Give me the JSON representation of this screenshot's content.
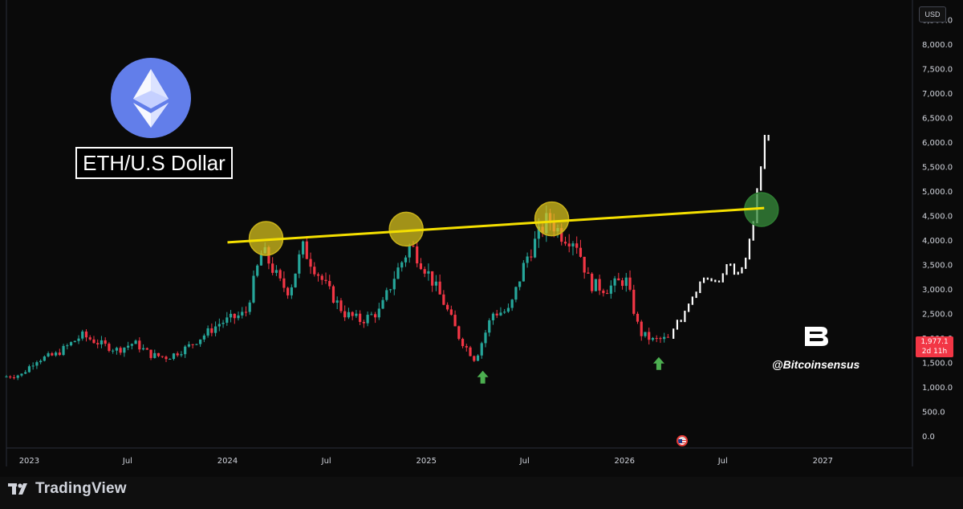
{
  "currency_badge": "USD",
  "title": "ETH/U.S Dollar",
  "brand_handle": "@Bitcoinsensus",
  "current_price": {
    "value": "1,977.1",
    "countdown": "2d 11h"
  },
  "footer": {
    "logo_text": "TradingView"
  },
  "colors": {
    "up": "#26a69a",
    "down": "#f23645",
    "projection": "#ffffff",
    "trendline": "#f5e000",
    "eth": "#627eea"
  },
  "chart_data": {
    "type": "candlestick",
    "title": "ETH/U.S Dollar",
    "y_tick_labels": [
      "0.0",
      "500.0",
      "1,000.0",
      "1,500.0",
      "2,000.0",
      "2,500.0",
      "3,000.0",
      "3,500.0",
      "4,000.0",
      "4,500.0",
      "5,000.0",
      "5,500.0",
      "6,000.0",
      "6,500.0",
      "7,000.0",
      "7,500.0",
      "8,000.0",
      "8,500.0"
    ],
    "y_ticks": [
      0,
      500,
      1000,
      1500,
      2000,
      2500,
      3000,
      3500,
      4000,
      4500,
      5000,
      5500,
      6000,
      6500,
      7000,
      7500,
      8000,
      8500
    ],
    "ylim": [
      -250,
      8900
    ],
    "x_tick_labels": [
      "2023",
      "Jul",
      "2024",
      "Jul",
      "2025",
      "Jul",
      "2026",
      "Jul",
      "2027"
    ],
    "x_ticks": [
      "2023-01-01",
      "2023-07-01",
      "2024-01-01",
      "2024-07-01",
      "2025-01-01",
      "2025-07-01",
      "2026-01-01",
      "2026-07-01",
      "2027-01-01"
    ],
    "xlim": [
      "2022-11-20",
      "2027-06-15"
    ],
    "price_path": [
      [
        "2022-11-20",
        1200
      ],
      [
        "2022-12-25",
        1250
      ],
      [
        "2023-01-20",
        1550
      ],
      [
        "2023-02-25",
        1650
      ],
      [
        "2023-04-15",
        2050
      ],
      [
        "2023-05-25",
        1850
      ],
      [
        "2023-06-20",
        1750
      ],
      [
        "2023-07-20",
        1900
      ],
      [
        "2023-08-20",
        1650
      ],
      [
        "2023-09-20",
        1600
      ],
      [
        "2023-10-25",
        1800
      ],
      [
        "2023-11-25",
        2050
      ],
      [
        "2023-12-25",
        2300
      ],
      [
        "2024-02-10",
        2500
      ],
      [
        "2024-03-12",
        3800
      ],
      [
        "2024-04-15",
        3100
      ],
      [
        "2024-05-01",
        2950
      ],
      [
        "2024-05-25",
        3850
      ],
      [
        "2024-07-10",
        3000
      ],
      [
        "2024-08-10",
        2500
      ],
      [
        "2024-09-10",
        2350
      ],
      [
        "2024-10-15",
        2550
      ],
      [
        "2024-11-10",
        3250
      ],
      [
        "2024-12-10",
        3900
      ],
      [
        "2025-01-10",
        3350
      ],
      [
        "2025-02-10",
        2700
      ],
      [
        "2025-03-10",
        2000
      ],
      [
        "2025-04-08",
        1550
      ],
      [
        "2025-05-10",
        2500
      ],
      [
        "2025-06-10",
        2550
      ],
      [
        "2025-07-10",
        3600
      ],
      [
        "2025-08-20",
        4450
      ],
      [
        "2025-09-15",
        4100
      ],
      [
        "2025-10-10",
        4000
      ],
      [
        "2025-11-05",
        3100
      ],
      [
        "2025-12-05",
        3000
      ],
      [
        "2026-01-10",
        3200
      ],
      [
        "2026-02-05",
        2100
      ],
      [
        "2026-03-01",
        1950
      ],
      [
        "2026-03-25",
        1977
      ]
    ],
    "projection_path": [
      [
        "2026-04-01",
        2000
      ],
      [
        "2026-05-01",
        2600
      ],
      [
        "2026-06-01",
        3300
      ],
      [
        "2026-07-01",
        3250
      ],
      [
        "2026-07-20",
        3600
      ],
      [
        "2026-08-05",
        3300
      ],
      [
        "2026-08-20",
        3800
      ],
      [
        "2026-09-05",
        4700
      ],
      [
        "2026-09-25",
        6300
      ]
    ],
    "trendline": {
      "start": [
        "2024-01-01",
        3950
      ],
      "end": [
        "2026-09-15",
        4650
      ]
    },
    "highlights": [
      {
        "date": "2024-03-12",
        "price": 4030,
        "color": "yellow"
      },
      {
        "date": "2024-11-25",
        "price": 4220,
        "color": "yellow"
      },
      {
        "date": "2025-08-20",
        "price": 4430,
        "color": "yellow"
      },
      {
        "date": "2026-09-10",
        "price": 4620,
        "color": "green"
      }
    ],
    "arrows": [
      {
        "date": "2025-04-15",
        "price": 1180
      },
      {
        "date": "2026-03-05",
        "price": 1460
      }
    ],
    "event_marker_date": "2026-04-30",
    "current_price": 1977.1
  }
}
